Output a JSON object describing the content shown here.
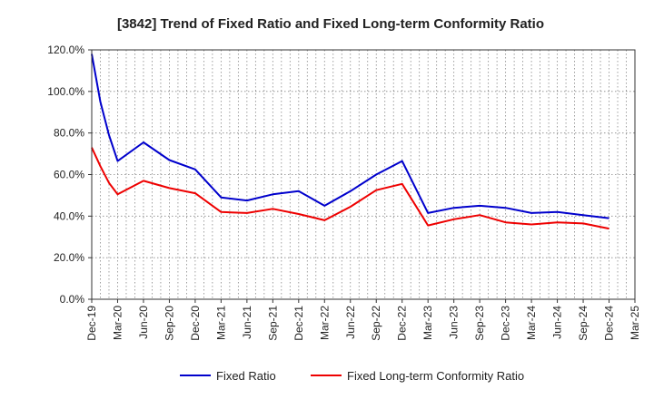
{
  "chart_data": {
    "type": "line",
    "title": "[3842]  Trend of Fixed Ratio and Fixed Long-term Conformity Ratio",
    "xlabel": "",
    "ylabel": "",
    "ylim": [
      0,
      120
    ],
    "yticks": [
      0,
      20,
      40,
      60,
      80,
      100,
      120
    ],
    "ytick_labels": [
      "0.0%",
      "20.0%",
      "40.0%",
      "60.0%",
      "80.0%",
      "100.0%",
      "120.0%"
    ],
    "xtick_labels": [
      "Dec-19",
      "Mar-20",
      "Jun-20",
      "Sep-20",
      "Dec-20",
      "Mar-21",
      "Jun-21",
      "Sep-21",
      "Dec-21",
      "Mar-22",
      "Jun-22",
      "Sep-22",
      "Dec-22",
      "Mar-23",
      "Jun-23",
      "Sep-23",
      "Dec-23",
      "Mar-24",
      "Jun-24",
      "Sep-24",
      "Dec-24",
      "Mar-25"
    ],
    "grid": true,
    "legend_position": "bottom",
    "series": [
      {
        "name": "Fixed Ratio",
        "color": "#0000cc",
        "x": [
          "Dec-19",
          "Jan-20",
          "Feb-20",
          "Mar-20",
          "Jun-20",
          "Sep-20",
          "Dec-20",
          "Mar-21",
          "Jun-21",
          "Sep-21",
          "Dec-21",
          "Mar-22",
          "Jun-22",
          "Sep-22",
          "Dec-22",
          "Mar-23",
          "Jun-23",
          "Sep-23",
          "Dec-23",
          "Mar-24",
          "Jun-24",
          "Sep-24",
          "Dec-24"
        ],
        "values": [
          118,
          95,
          79,
          66.5,
          75.5,
          67,
          62.5,
          49,
          47.5,
          50.5,
          52,
          45,
          52,
          60,
          66.5,
          41.5,
          44,
          45,
          44,
          41.5,
          42,
          40.5,
          39
        ]
      },
      {
        "name": "Fixed Long-term Conformity Ratio",
        "color": "#ee0000",
        "x": [
          "Dec-19",
          "Jan-20",
          "Feb-20",
          "Mar-20",
          "Jun-20",
          "Sep-20",
          "Dec-20",
          "Mar-21",
          "Jun-21",
          "Sep-21",
          "Dec-21",
          "Mar-22",
          "Jun-22",
          "Sep-22",
          "Dec-22",
          "Mar-23",
          "Jun-23",
          "Sep-23",
          "Dec-23",
          "Mar-24",
          "Jun-24",
          "Sep-24",
          "Dec-24"
        ],
        "values": [
          73,
          64,
          56,
          50.5,
          57,
          53.5,
          51,
          42,
          41.5,
          43.5,
          41,
          38,
          44.5,
          52.5,
          55.5,
          35.5,
          38.5,
          40.5,
          37,
          36,
          37,
          36.5,
          34
        ]
      }
    ]
  }
}
